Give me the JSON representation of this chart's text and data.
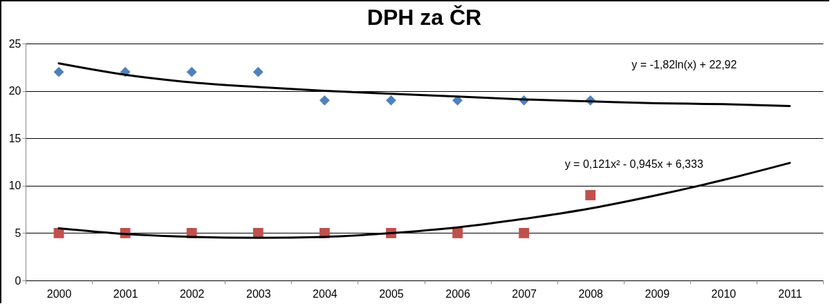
{
  "chart_data": {
    "type": "scatter",
    "title": "DPH za ČR",
    "categories": [
      "2000",
      "2001",
      "2002",
      "2003",
      "2004",
      "2005",
      "2006",
      "2007",
      "2008",
      "2009",
      "2010",
      "2011"
    ],
    "series": [
      {
        "color": "#4f81bd",
        "marker": "diamond",
        "values": [
          22,
          22,
          22,
          22,
          19,
          19,
          19,
          19,
          19,
          null,
          null,
          null
        ]
      },
      {
        "color": "#c0504d",
        "marker": "square",
        "values": [
          5,
          5,
          5,
          5,
          5,
          5,
          5,
          5,
          9,
          null,
          null,
          null
        ]
      },
      {
        "type": "line",
        "color": "#000000",
        "values": [
          22.9,
          21.7,
          20.9,
          20.4,
          20.0,
          19.7,
          19.4,
          19.1,
          18.9,
          18.7,
          18.6,
          18.4
        ]
      },
      {
        "type": "line",
        "color": "#000000",
        "values": [
          5.5,
          4.9,
          4.6,
          4.5,
          4.6,
          5.0,
          5.6,
          6.5,
          7.6,
          9.0,
          10.6,
          12.4
        ]
      }
    ],
    "ylim": [
      0,
      25
    ],
    "yticks": [
      0,
      5,
      10,
      15,
      20,
      25
    ],
    "grid": "y",
    "annotations": [
      "y = -1,82ln(x) + 22,92",
      "y = 0,121x² - 0,945x + 6,333"
    ]
  }
}
